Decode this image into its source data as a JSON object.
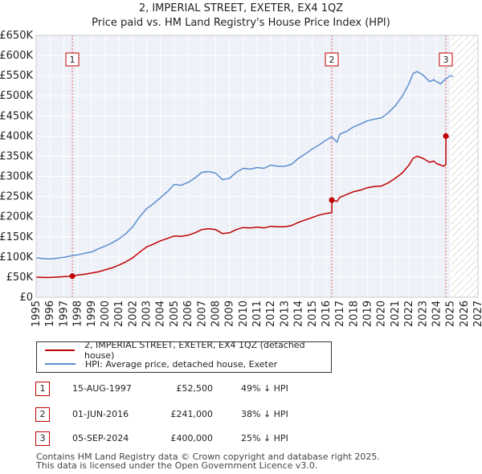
{
  "title_line1": "2, IMPERIAL STREET, EXETER, EX4 1QZ",
  "title_line2": "Price paid vs. HM Land Registry's House Price Index (HPI)",
  "legend": [
    {
      "label": "2, IMPERIAL STREET, EXETER, EX4 1QZ (detached house)",
      "color": "#c00000"
    },
    {
      "label": "HPI: Average price, detached house, Exeter",
      "color": "#5b8fd0"
    }
  ],
  "transactions": [
    {
      "num": "1",
      "date": "15-AUG-1997",
      "price": "£52,500",
      "hpi": "49% ↓ HPI"
    },
    {
      "num": "2",
      "date": "01-JUN-2016",
      "price": "£241,000",
      "hpi": "38% ↓ HPI"
    },
    {
      "num": "3",
      "date": "05-SEP-2024",
      "price": "£400,000",
      "hpi": "25% ↓ HPI"
    }
  ],
  "footer_line1": "Contains HM Land Registry data © Crown copyright and database right 2025.",
  "footer_line2": "This data is licensed under the Open Government Licence v3.0.",
  "chart_data": {
    "type": "line",
    "title": "2, IMPERIAL STREET, EXETER, EX4 1QZ",
    "subtitle": "Price paid vs. HM Land Registry's House Price Index (HPI)",
    "xlim": [
      1995,
      2027
    ],
    "ylim": [
      0,
      650000
    ],
    "x_ticks": [
      "1995",
      "1996",
      "1997",
      "1998",
      "1999",
      "2000",
      "2001",
      "2002",
      "2003",
      "2004",
      "2005",
      "2006",
      "2007",
      "2008",
      "2009",
      "2010",
      "2011",
      "2012",
      "2013",
      "2014",
      "2015",
      "2016",
      "2017",
      "2018",
      "2019",
      "2020",
      "2021",
      "2022",
      "2023",
      "2024",
      "2025",
      "2026",
      "2027"
    ],
    "y_ticks": [
      {
        "value": 0,
        "label": "£0"
      },
      {
        "value": 50000,
        "label": "£50K"
      },
      {
        "value": 100000,
        "label": "£100K"
      },
      {
        "value": 150000,
        "label": "£150K"
      },
      {
        "value": 200000,
        "label": "£200K"
      },
      {
        "value": 250000,
        "label": "£250K"
      },
      {
        "value": 300000,
        "label": "£300K"
      },
      {
        "value": 350000,
        "label": "£350K"
      },
      {
        "value": 400000,
        "label": "£400K"
      },
      {
        "value": 450000,
        "label": "£450K"
      },
      {
        "value": 500000,
        "label": "£500K"
      },
      {
        "value": 550000,
        "label": "£550K"
      },
      {
        "value": 600000,
        "label": "£600K"
      },
      {
        "value": 650000,
        "label": "£650K"
      }
    ],
    "hatch_from": 2025.0,
    "series": [
      {
        "name": "HPI: Average price, detached house, Exeter",
        "color": "#5b8fd0",
        "x": [
          1995.0,
          1995.5,
          1996.0,
          1996.5,
          1997.0,
          1997.6,
          1998.0,
          1998.5,
          1999.0,
          1999.5,
          2000.0,
          2000.5,
          2001.0,
          2001.5,
          2002.0,
          2002.5,
          2003.0,
          2003.5,
          2004.0,
          2004.5,
          2005.0,
          2005.5,
          2006.0,
          2006.5,
          2007.0,
          2007.5,
          2008.0,
          2008.5,
          2009.0,
          2009.5,
          2010.0,
          2010.5,
          2011.0,
          2011.5,
          2012.0,
          2012.5,
          2013.0,
          2013.5,
          2014.0,
          2014.5,
          2015.0,
          2015.5,
          2016.0,
          2016.4,
          2016.8,
          2017.0,
          2017.5,
          2018.0,
          2018.5,
          2019.0,
          2019.5,
          2020.0,
          2020.5,
          2021.0,
          2021.5,
          2022.0,
          2022.3,
          2022.6,
          2023.0,
          2023.5,
          2023.8,
          2024.0,
          2024.3,
          2024.6,
          2025.0,
          2025.2
        ],
        "y": [
          98000,
          96000,
          95000,
          97000,
          99000,
          103000,
          105000,
          109000,
          112000,
          120000,
          127000,
          135000,
          145000,
          158000,
          175000,
          200000,
          220000,
          232000,
          247000,
          262000,
          280000,
          278000,
          285000,
          296000,
          310000,
          312000,
          308000,
          292000,
          295000,
          310000,
          320000,
          318000,
          322000,
          320000,
          328000,
          325000,
          325000,
          330000,
          345000,
          356000,
          368000,
          378000,
          390000,
          398000,
          385000,
          405000,
          412000,
          423000,
          430000,
          438000,
          442000,
          445000,
          458000,
          475000,
          498000,
          530000,
          555000,
          560000,
          552000,
          535000,
          540000,
          535000,
          530000,
          540000,
          550000,
          548000
        ]
      },
      {
        "name": "2, IMPERIAL STREET, EXETER, EX4 1QZ (detached house)",
        "color": "#c00000",
        "x": [
          1995.0,
          1995.5,
          1996.0,
          1996.5,
          1997.0,
          1997.62,
          1998.0,
          1998.5,
          1999.0,
          1999.5,
          2000.0,
          2000.5,
          2001.0,
          2001.5,
          2002.0,
          2002.5,
          2003.0,
          2003.5,
          2004.0,
          2004.5,
          2005.0,
          2005.5,
          2006.0,
          2006.5,
          2007.0,
          2007.5,
          2008.0,
          2008.5,
          2009.0,
          2009.5,
          2010.0,
          2010.5,
          2011.0,
          2011.5,
          2012.0,
          2012.5,
          2013.0,
          2013.5,
          2014.0,
          2014.5,
          2015.0,
          2015.5,
          2016.0,
          2016.41,
          2016.42,
          2016.8,
          2017.0,
          2017.5,
          2018.0,
          2018.5,
          2019.0,
          2019.5,
          2020.0,
          2020.5,
          2021.0,
          2021.5,
          2022.0,
          2022.3,
          2022.6,
          2023.0,
          2023.5,
          2023.8,
          2024.0,
          2024.3,
          2024.5,
          2024.67,
          2024.68,
          2024.9
        ],
        "y": [
          50000,
          49000,
          49000,
          50000,
          51000,
          52500,
          55000,
          57000,
          60000,
          63000,
          68000,
          73000,
          80000,
          88000,
          98000,
          112000,
          125000,
          132000,
          140000,
          146000,
          152000,
          151000,
          154000,
          160000,
          168000,
          170000,
          168000,
          158000,
          160000,
          168000,
          173000,
          172000,
          174000,
          172000,
          176000,
          175000,
          175000,
          178000,
          186000,
          192000,
          198000,
          204000,
          208000,
          210000,
          241000,
          238000,
          248000,
          255000,
          262000,
          266000,
          272000,
          275000,
          276000,
          284000,
          295000,
          308000,
          328000,
          345000,
          350000,
          345000,
          335000,
          338000,
          332000,
          328000,
          325000,
          330000,
          400000,
          398000
        ]
      }
    ],
    "annotations": [
      {
        "label": "1",
        "x": 1997.62,
        "y": 52500
      },
      {
        "label": "2",
        "x": 2016.41,
        "y": 241000
      },
      {
        "label": "3",
        "x": 2024.67,
        "y": 400000
      }
    ]
  }
}
